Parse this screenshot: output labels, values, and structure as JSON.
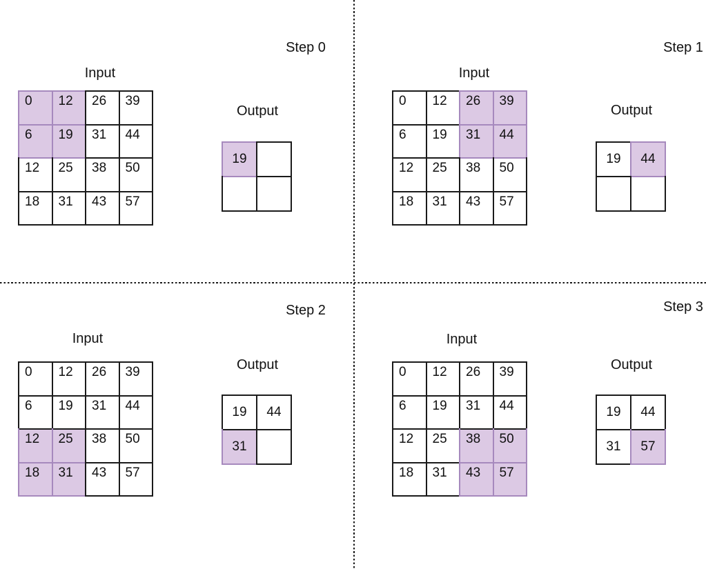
{
  "colors": {
    "grid_line": "#1a1a1a",
    "highlight_border": "#a689bd",
    "highlight_fill": "#dcc9e4",
    "divider": "#151515",
    "text": "#111111"
  },
  "steps": [
    {
      "label": "Step 0",
      "input_title": "Input",
      "output_title": "Output",
      "input": {
        "values": [
          [
            0,
            12,
            26,
            39
          ],
          [
            6,
            19,
            31,
            44
          ],
          [
            12,
            25,
            38,
            50
          ],
          [
            18,
            31,
            43,
            57
          ]
        ],
        "highlight": [
          [
            0,
            0
          ],
          [
            0,
            1
          ],
          [
            1,
            0
          ],
          [
            1,
            1
          ]
        ]
      },
      "output": {
        "values": [
          [
            19,
            null
          ],
          [
            null,
            null
          ]
        ],
        "highlight": [
          [
            0,
            0
          ]
        ]
      }
    },
    {
      "label": "Step 1",
      "input_title": "Input",
      "output_title": "Output",
      "input": {
        "values": [
          [
            0,
            12,
            26,
            39
          ],
          [
            6,
            19,
            31,
            44
          ],
          [
            12,
            25,
            38,
            50
          ],
          [
            18,
            31,
            43,
            57
          ]
        ],
        "highlight": [
          [
            0,
            2
          ],
          [
            0,
            3
          ],
          [
            1,
            2
          ],
          [
            1,
            3
          ]
        ]
      },
      "output": {
        "values": [
          [
            19,
            44
          ],
          [
            null,
            null
          ]
        ],
        "highlight": [
          [
            0,
            1
          ]
        ]
      }
    },
    {
      "label": "Step 2",
      "input_title": "Input",
      "output_title": "Output",
      "input": {
        "values": [
          [
            0,
            12,
            26,
            39
          ],
          [
            6,
            19,
            31,
            44
          ],
          [
            12,
            25,
            38,
            50
          ],
          [
            18,
            31,
            43,
            57
          ]
        ],
        "highlight": [
          [
            2,
            0
          ],
          [
            2,
            1
          ],
          [
            3,
            0
          ],
          [
            3,
            1
          ]
        ]
      },
      "output": {
        "values": [
          [
            19,
            44
          ],
          [
            31,
            null
          ]
        ],
        "highlight": [
          [
            1,
            0
          ]
        ]
      }
    },
    {
      "label": "Step 3",
      "input_title": "Input",
      "output_title": "Output",
      "input": {
        "values": [
          [
            0,
            12,
            26,
            39
          ],
          [
            6,
            19,
            31,
            44
          ],
          [
            12,
            25,
            38,
            50
          ],
          [
            18,
            31,
            43,
            57
          ]
        ],
        "highlight": [
          [
            2,
            2
          ],
          [
            2,
            3
          ],
          [
            3,
            2
          ],
          [
            3,
            3
          ]
        ]
      },
      "output": {
        "values": [
          [
            19,
            44
          ],
          [
            31,
            57
          ]
        ],
        "highlight": [
          [
            1,
            1
          ]
        ]
      }
    }
  ]
}
